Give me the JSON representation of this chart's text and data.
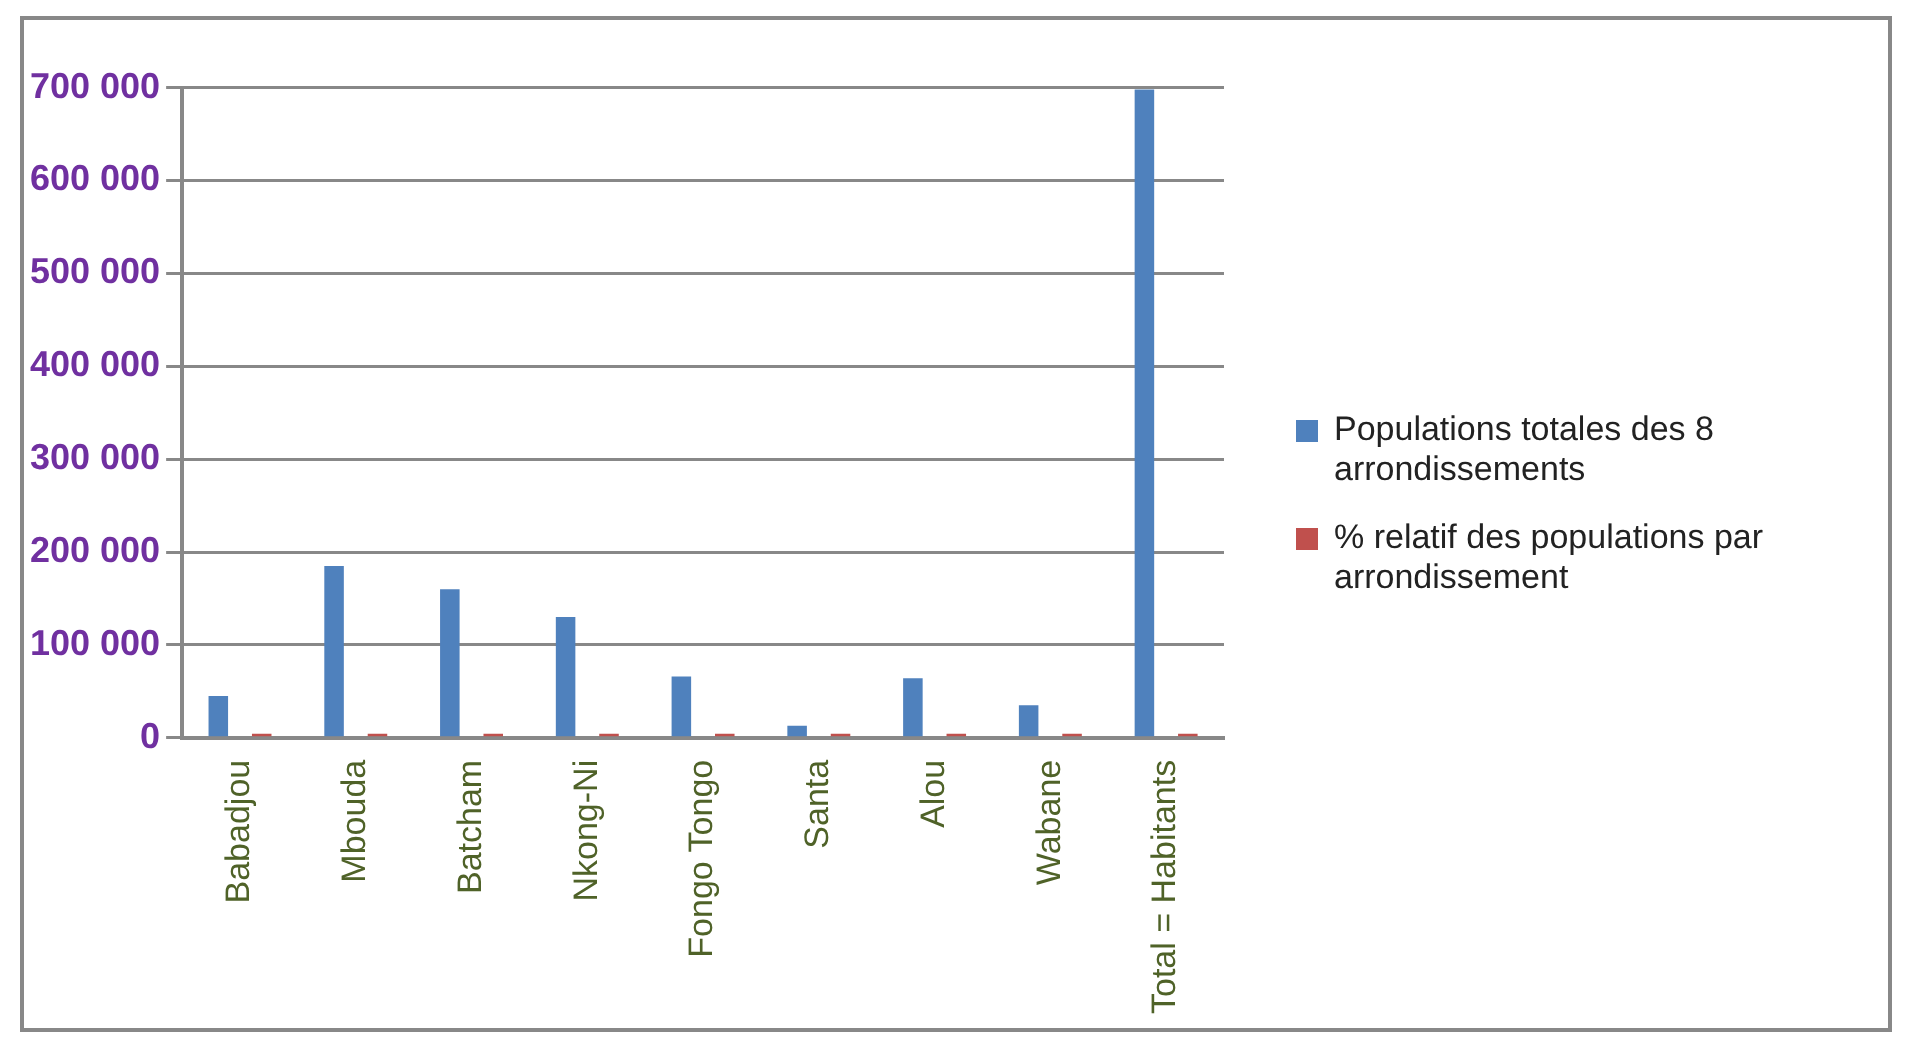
{
  "chart_data": {
    "type": "bar",
    "categories": [
      "Babadjou",
      "Mbouda",
      "Batcham",
      "Nkong-Ni",
      "Fongo Tongo",
      "Santa",
      "Alou",
      "Wabane",
      "Total = Habitants"
    ],
    "series": [
      {
        "name": "Populations totales des 8 arrondissements",
        "color": "#4f81bd",
        "values": [
          45000,
          185000,
          160000,
          130000,
          66000,
          13000,
          64000,
          35000,
          698000
        ]
      },
      {
        "name": "% relatif des populations par arrondissement",
        "color": "#c0504d",
        "values": [
          0,
          0,
          0,
          0,
          0,
          0,
          0,
          0,
          0
        ]
      }
    ],
    "ylim": [
      0,
      700000
    ],
    "yticks": [
      {
        "value": 0,
        "label": "0"
      },
      {
        "value": 100000,
        "label": "100 000"
      },
      {
        "value": 200000,
        "label": "200 000"
      },
      {
        "value": 300000,
        "label": "300 000"
      },
      {
        "value": 400000,
        "label": "400 000"
      },
      {
        "value": 500000,
        "label": "500 000"
      },
      {
        "value": 600000,
        "label": "600 000"
      },
      {
        "value": 700000,
        "label": "700 000"
      }
    ],
    "grid": "y",
    "legend": "right"
  }
}
